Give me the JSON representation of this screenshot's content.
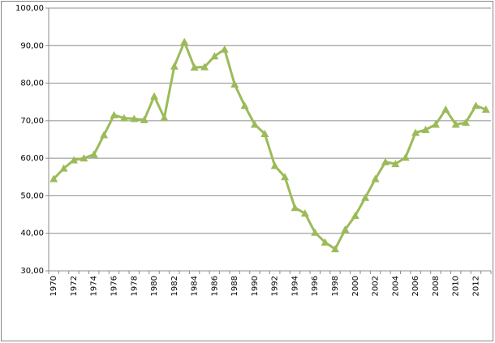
{
  "chart_data": {
    "type": "line",
    "categories": [
      "1970",
      null,
      "1972",
      null,
      "1974",
      null,
      "1976",
      null,
      "1978",
      null,
      "1980",
      null,
      "1982",
      null,
      "1984",
      null,
      "1986",
      null,
      "1988",
      null,
      "1990",
      null,
      "1992",
      null,
      "1994",
      null,
      "1996",
      null,
      "1998",
      null,
      "2000",
      null,
      "2002",
      null,
      "2004",
      null,
      "2006",
      null,
      "2008",
      null,
      "2010",
      null,
      "2012",
      null
    ],
    "series": [
      {
        "color": "#9bbb59",
        "values": [
          54.5,
          57.3,
          59.5,
          60,
          61,
          66.2,
          71.5,
          70.7,
          70.5,
          70.2,
          76.5,
          70.8,
          84.5,
          91,
          84.2,
          84.3,
          87.2,
          89,
          79.7,
          74,
          69,
          66.5,
          58,
          55,
          46.8,
          45.3,
          40.2,
          37.6,
          35.8,
          41,
          44.7,
          49.5,
          54.5,
          59,
          58.5,
          60.2,
          66.8,
          67.6,
          69,
          73,
          69,
          69.5,
          74,
          73
        ]
      }
    ],
    "ylim": [
      30,
      100
    ],
    "yticks": [
      {
        "value": 30,
        "label": "30,00"
      },
      {
        "value": 40,
        "label": "40,00"
      },
      {
        "value": 50,
        "label": "50,00"
      },
      {
        "value": 60,
        "label": "60,00"
      },
      {
        "value": 70,
        "label": "70,00"
      },
      {
        "value": 80,
        "label": "80,00"
      },
      {
        "value": 90,
        "label": "90,00"
      },
      {
        "value": 100,
        "label": "100,00"
      }
    ],
    "grid": true
  }
}
